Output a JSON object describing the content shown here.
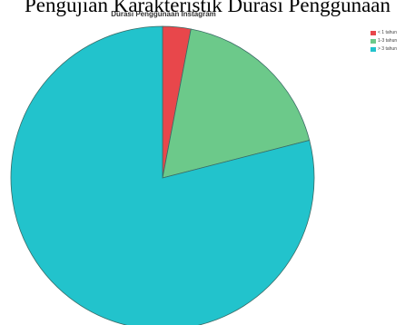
{
  "document": {
    "heading": "Pengujian Karakteristik Durasi Penggunaan"
  },
  "chart_data": {
    "type": "pie",
    "title": "Durasi Penggunaan Instagram",
    "categories": [
      "< 1 tahun",
      "1-3 tahun",
      "> 3 tahun"
    ],
    "values": [
      3,
      18,
      79
    ],
    "colors": [
      "#e8474b",
      "#6cc98a",
      "#22c3cc"
    ],
    "legend_position": "top-right"
  }
}
